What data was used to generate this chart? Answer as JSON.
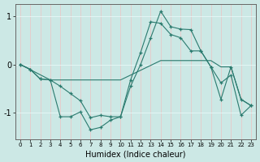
{
  "title": "",
  "xlabel": "Humidex (Indice chaleur)",
  "ylabel": "",
  "bg_color": "#cce8e5",
  "grid_color": "#e8f8f7",
  "line_color": "#2a7a6e",
  "xlim": [
    -0.5,
    23.5
  ],
  "ylim": [
    -1.55,
    1.25
  ],
  "yticks": [
    -1,
    0,
    1
  ],
  "xticks": [
    0,
    1,
    2,
    3,
    4,
    5,
    6,
    7,
    8,
    9,
    10,
    11,
    12,
    13,
    14,
    15,
    16,
    17,
    18,
    19,
    20,
    21,
    22,
    23
  ],
  "line_spiky_x": [
    0,
    1,
    2,
    3,
    4,
    5,
    6,
    7,
    8,
    9,
    10,
    11,
    12,
    13,
    14,
    15,
    16,
    17,
    18,
    19,
    20,
    21,
    22,
    23
  ],
  "line_spiky_y": [
    0.0,
    -0.1,
    -0.3,
    -0.32,
    -0.45,
    -0.6,
    -0.75,
    -1.1,
    -1.05,
    -1.08,
    -1.08,
    -0.45,
    0.0,
    0.55,
    1.1,
    0.78,
    0.73,
    0.72,
    0.28,
    -0.05,
    -0.38,
    -0.22,
    -1.05,
    -0.85
  ],
  "line_smooth_x": [
    0,
    3,
    10,
    14,
    19,
    20,
    21,
    22,
    23
  ],
  "line_smooth_y": [
    0.0,
    -0.32,
    -0.32,
    0.08,
    0.08,
    -0.05,
    -0.05,
    -0.72,
    -0.85
  ],
  "line_valley_x": [
    0,
    1,
    2,
    3,
    4,
    5,
    6,
    7,
    8,
    9,
    10,
    11,
    12,
    13,
    14,
    15,
    16,
    17,
    18,
    19,
    20,
    21,
    22,
    23
  ],
  "line_valley_y": [
    0.0,
    -0.1,
    -0.3,
    -0.32,
    -1.08,
    -1.08,
    -0.98,
    -1.35,
    -1.3,
    -1.15,
    -1.08,
    -0.32,
    0.25,
    0.88,
    0.85,
    0.62,
    0.55,
    0.28,
    0.28,
    -0.05,
    -0.72,
    -0.05,
    -0.72,
    -0.85
  ]
}
